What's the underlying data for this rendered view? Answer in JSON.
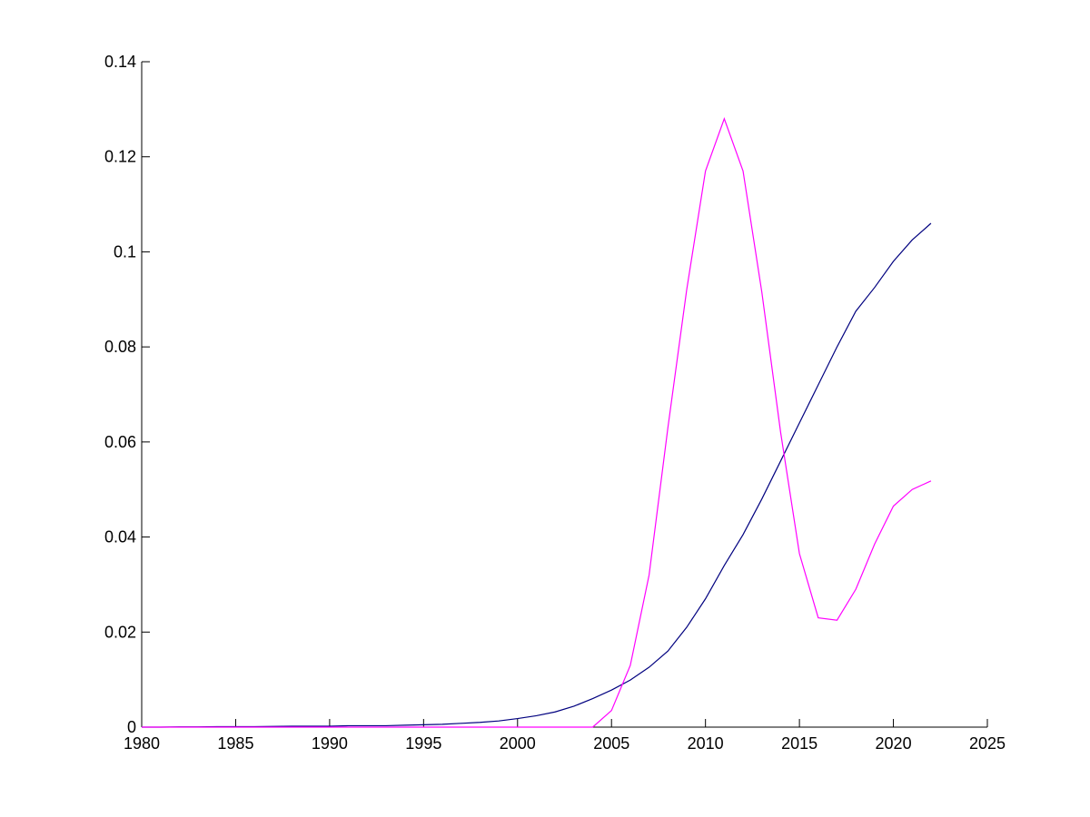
{
  "chart_data": {
    "type": "line",
    "x": [
      1980,
      1981,
      1982,
      1983,
      1984,
      1985,
      1986,
      1987,
      1988,
      1989,
      1990,
      1991,
      1992,
      1993,
      1994,
      1995,
      1996,
      1997,
      1998,
      1999,
      2000,
      2001,
      2002,
      2003,
      2004,
      2005,
      2006,
      2007,
      2008,
      2009,
      2010,
      2011,
      2012,
      2013,
      2014,
      2015,
      2016,
      2017,
      2018,
      2019,
      2020,
      2021,
      2022
    ],
    "series": [
      {
        "color": "#00007f",
        "values": [
          0,
          0,
          5e-05,
          5e-05,
          0.0001,
          0.0001,
          0.0001,
          0.00015,
          0.0002,
          0.0002,
          0.0002,
          0.0003,
          0.0003,
          0.0003,
          0.0004,
          0.0005,
          0.0006,
          0.0008,
          0.001,
          0.0013,
          0.0018,
          0.0024,
          0.0032,
          0.0044,
          0.006,
          0.0078,
          0.0099,
          0.0126,
          0.016,
          0.021,
          0.027,
          0.034,
          0.0405,
          0.048,
          0.056,
          0.064,
          0.072,
          0.08,
          0.0875,
          0.0925,
          0.098,
          0.1025,
          0.106
        ]
      },
      {
        "color": "#ff00ff",
        "values": [
          0,
          0,
          0,
          0,
          0,
          0,
          0,
          0,
          0,
          0,
          0,
          0,
          0,
          0,
          0,
          0,
          0,
          0,
          0,
          0,
          0,
          0,
          0,
          0,
          0,
          0.0035,
          0.013,
          0.032,
          0.063,
          0.092,
          0.117,
          0.128,
          0.117,
          0.0915,
          0.062,
          0.0365,
          0.023,
          0.0225,
          0.029,
          0.0385,
          0.0465,
          0.05,
          0.0518
        ]
      }
    ],
    "xlim": [
      1980,
      2025
    ],
    "xticks": [
      1980,
      1985,
      1990,
      1995,
      2000,
      2005,
      2010,
      2015,
      2020,
      2025
    ],
    "ylim": [
      0,
      0.14
    ],
    "yticks": [
      0,
      0.02,
      0.04,
      0.06,
      0.08,
      0.1,
      0.12,
      0.14
    ],
    "grid": false
  }
}
